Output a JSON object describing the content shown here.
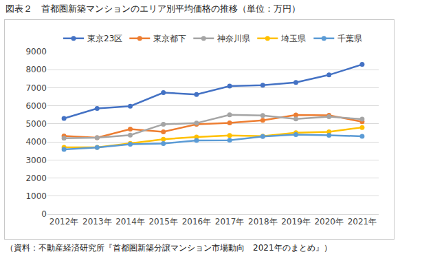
{
  "chart_data": {
    "type": "line",
    "title": "図表２　首都圏新築マンションのエリア別平均価格の推移（単位：万円）",
    "annotations": [
      "（資料：不動産経済研究所『首都圏新築分譲マンション市場動向　2021年のまとめ』）"
    ],
    "categories": [
      "2012年",
      "2013年",
      "2014年",
      "2015年",
      "2016年",
      "2017年",
      "2018年",
      "2019年",
      "2020年",
      "2021年"
    ],
    "series": [
      {
        "name": "東京23区",
        "color": "#4472c4",
        "values": [
          5300,
          5850,
          5980,
          6730,
          6630,
          7090,
          7140,
          7290,
          7710,
          8290
        ]
      },
      {
        "name": "東京都下",
        "color": "#ed7d31",
        "values": [
          4330,
          4230,
          4710,
          4560,
          4980,
          5050,
          5200,
          5490,
          5470,
          5120
        ]
      },
      {
        "name": "神奈川県",
        "color": "#a5a5a5",
        "values": [
          4200,
          4230,
          4380,
          4980,
          5040,
          5500,
          5460,
          5270,
          5400,
          5260
        ]
      },
      {
        "name": "埼玉県",
        "color": "#ffc000",
        "values": [
          3700,
          3700,
          3920,
          4150,
          4270,
          4360,
          4320,
          4510,
          4560,
          4800
        ]
      },
      {
        "name": "千葉県",
        "color": "#5b9bd5",
        "values": [
          3580,
          3690,
          3870,
          3910,
          4080,
          4090,
          4300,
          4400,
          4370,
          4310
        ]
      }
    ],
    "ylim": [
      0,
      9000
    ],
    "yticks": [
      0,
      1000,
      2000,
      3000,
      4000,
      5000,
      6000,
      7000,
      8000,
      9000
    ],
    "grid": true,
    "legend": "top",
    "marker": "circle"
  }
}
